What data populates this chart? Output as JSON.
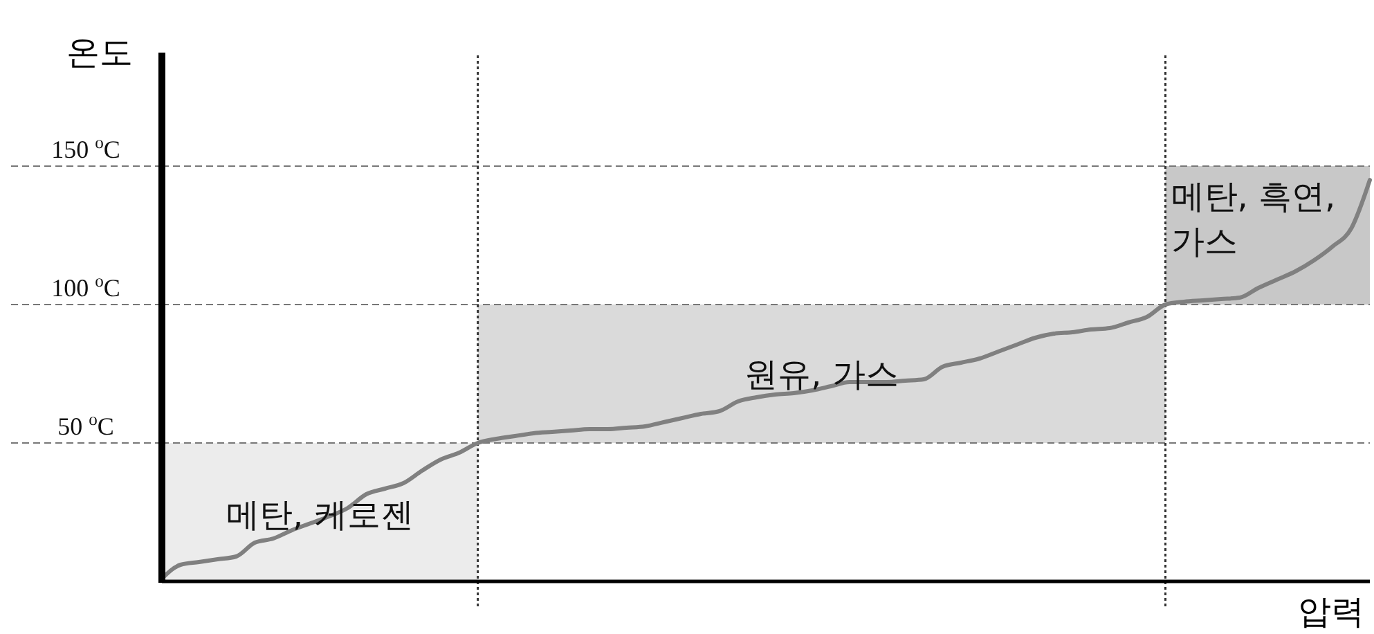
{
  "chart_data": {
    "type": "line",
    "xlabel": "압력",
    "ylabel": "온도",
    "categories": [
      null,
      null,
      null,
      null,
      null,
      null,
      null,
      null,
      null,
      null,
      null,
      null,
      null,
      null,
      null,
      null,
      null,
      null,
      null,
      null,
      null,
      null,
      null,
      null,
      null,
      null,
      null,
      null,
      null,
      null,
      null,
      null,
      null,
      null,
      null,
      null,
      null,
      null,
      null,
      null,
      null,
      null,
      null,
      null,
      null,
      null,
      null,
      null,
      null,
      null,
      null,
      null,
      null,
      null,
      null,
      null,
      null,
      null,
      null,
      null,
      null,
      null,
      null,
      null,
      null,
      null
    ],
    "series": [
      {
        "color": "#808080",
        "values": [
          1,
          6,
          7,
          8,
          9,
          14,
          15.5,
          18.5,
          21,
          23.5,
          26.5,
          31.5,
          33.5,
          35.5,
          40,
          44,
          46.5,
          50,
          51.5,
          52.5,
          53.5,
          54,
          54.5,
          55,
          55,
          55.5,
          56,
          57.5,
          59,
          60.5,
          61.5,
          65,
          66.5,
          67.5,
          68,
          69,
          70.5,
          72,
          72,
          72,
          72.5,
          73,
          77.5,
          79,
          80.5,
          83,
          85.5,
          88,
          89.5,
          90,
          91,
          91.5,
          93.5,
          95.5,
          100,
          101,
          101.5,
          102,
          102.5,
          106,
          109,
          112,
          116,
          121,
          127.5,
          145
        ]
      }
    ],
    "ylim": [
      0,
      190
    ],
    "yticks": [
      {
        "value": 50,
        "label": "50 $^{o}$C"
      },
      {
        "value": 100,
        "label": "100 $^{o}$C"
      },
      {
        "value": 150,
        "label": "150 $^{o}$C"
      }
    ],
    "grid": "y",
    "tick_labels": "y",
    "marker": "none",
    "line_style": "solid",
    "bands": [
      {
        "axis": "y",
        "from": 0,
        "to": 50,
        "label": "메탄, 케로젠",
        "color": "#ececec"
      },
      {
        "axis": "y",
        "from": 50,
        "to": 100,
        "label": "원유, 가스",
        "color": "#dadada"
      },
      {
        "axis": "y",
        "from": 100,
        "to": 150,
        "label": "메탄, 흑연, 가스",
        "color": "#c8c8c8"
      }
    ]
  }
}
